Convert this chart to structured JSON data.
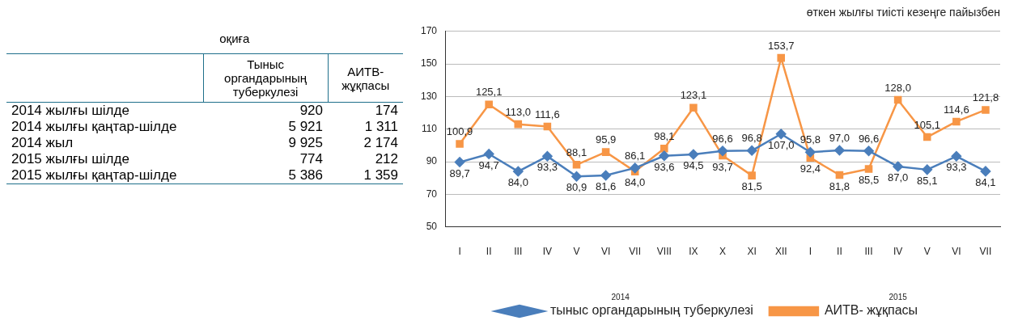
{
  "chart_data": [
    {
      "type": "other",
      "title": "оқиға",
      "categories": [
        "2014 жылғы шілде",
        "2014 жылғы қаңтар-шілде",
        "2014 жыл",
        "2015 жылғы шілде",
        "2015 жылғы қаңтар-шілде"
      ],
      "series": [
        {
          "name": "Тыныс органдарының туберкулезі",
          "values": [
            920,
            5921,
            9925,
            774,
            5386
          ]
        },
        {
          "name": "АИТВ-жұқпасы",
          "values": [
            174,
            1311,
            2174,
            212,
            1359
          ]
        }
      ],
      "data_labels": true
    },
    {
      "type": "line",
      "title": "өткен жылғы тиісті кезеңге пайызбен",
      "categories": [
        "I",
        "II",
        "III",
        "IV",
        "V",
        "VI",
        "VII",
        "VIII",
        "IX",
        "X",
        "XI",
        "XII",
        "I",
        "II",
        "III",
        "IV",
        "V",
        "VI",
        "VII"
      ],
      "series": [
        {
          "name": "тыныс органдарының туберкулезі",
          "color": "#4a7ebb",
          "marker": "diamond",
          "values": [
            89.7,
            94.7,
            84.0,
            93.3,
            80.9,
            81.6,
            86.1,
            93.6,
            94.5,
            96.6,
            96.8,
            107.0,
            95.8,
            97.0,
            96.6,
            87.0,
            85.1,
            93.3,
            84.1
          ],
          "value_labels": [
            "89,7",
            "94,7",
            "84,0",
            "93,3",
            "80,9",
            "81,6",
            "86,1",
            "93,6",
            "94,5",
            "96,6",
            "96,8",
            "107,0",
            "95,8",
            "97,0",
            "96,6",
            "87,0",
            "85,1",
            "93,3",
            "84,1"
          ]
        },
        {
          "name": "АИТВ- жұқпасы",
          "color": "#f79646",
          "marker": "square",
          "values": [
            100.9,
            125.1,
            113.0,
            111.6,
            88.1,
            95.9,
            84.0,
            98.1,
            123.1,
            93.7,
            81.5,
            153.7,
            92.4,
            81.8,
            85.5,
            128.0,
            105.1,
            114.6,
            121.8
          ],
          "value_labels": [
            "100,9",
            "125,1",
            "113,0",
            "111,6",
            "88,1",
            "95,9",
            "84,0",
            "98,1",
            "123,1",
            "93,7",
            "81,5",
            "153,7",
            "92,4",
            "81,8",
            "85,5",
            "128,0",
            "105,1",
            "114,6",
            "121,8"
          ]
        }
      ],
      "ylim": [
        50,
        170
      ],
      "yticks": [
        50,
        70,
        90,
        110,
        130,
        150,
        170
      ],
      "grid": "y",
      "legend": "bottom",
      "annotations": [
        "2014",
        "2015"
      ]
    }
  ]
}
